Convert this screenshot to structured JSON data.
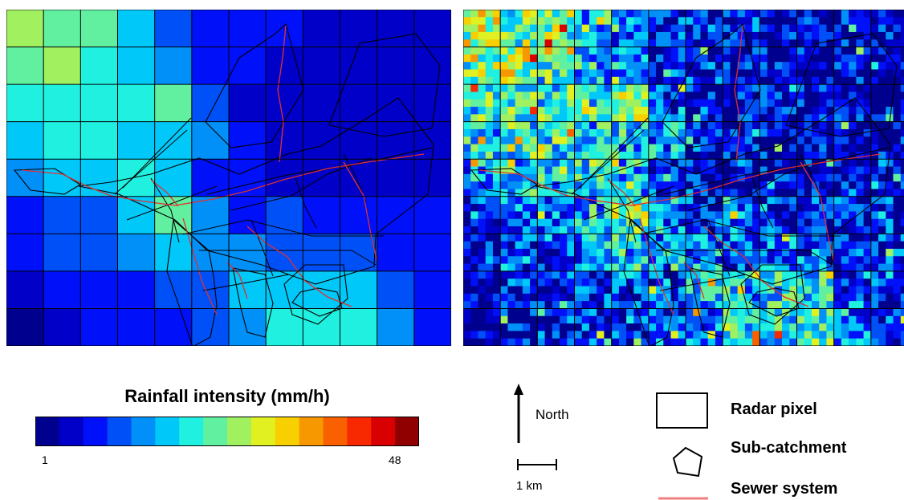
{
  "legend": {
    "title": "Rainfall intensity (mm/h)",
    "min_label": "1",
    "max_label": "48",
    "colors": [
      "#00008f",
      "#0000c8",
      "#0010f8",
      "#0050f8",
      "#0090f8",
      "#00c8f8",
      "#20f0e0",
      "#60f0a0",
      "#a0f060",
      "#e0f020",
      "#f8d000",
      "#f89800",
      "#f86000",
      "#f82800",
      "#d80000",
      "#900000"
    ]
  },
  "north_label": "North",
  "scale_label": "1 km",
  "symbols": {
    "radar_pixel": "Radar pixel",
    "sub_catchment": "Sub-catchment",
    "sewer_system": "Sewer system"
  },
  "colors": {
    "sewer": "#e03030",
    "outline": "#000000"
  }
}
